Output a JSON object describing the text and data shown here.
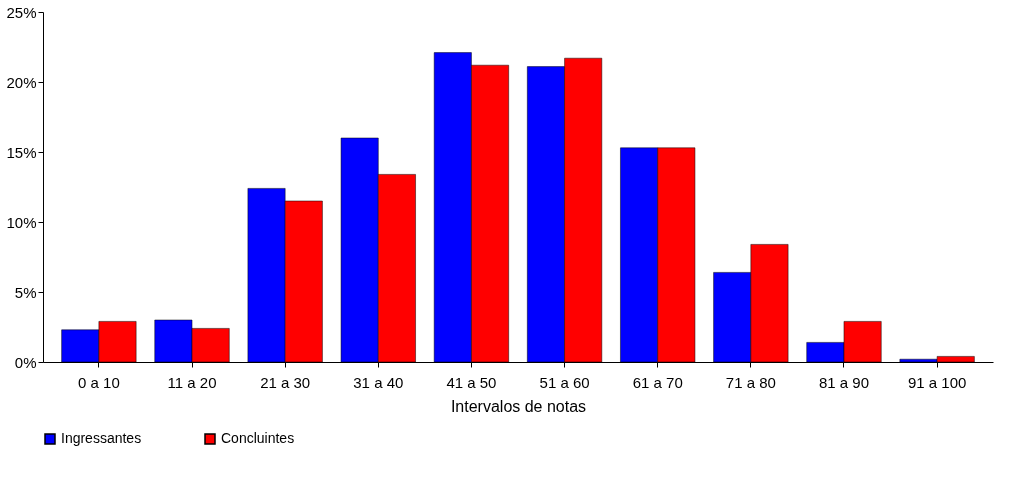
{
  "chart_data": {
    "type": "bar",
    "xlabel": "Intervalos de notas",
    "categories": [
      "0 a 10",
      "11 a 20",
      "21 a 30",
      "31 a 40",
      "41 a 50",
      "51 a 60",
      "61 a 70",
      "71 a 80",
      "81 a 90",
      "91 a 100"
    ],
    "series": [
      {
        "name": "Ingressantes",
        "color": "#0000ff",
        "values": [
          2.3,
          3.0,
          12.4,
          16.0,
          22.1,
          21.1,
          15.3,
          6.4,
          1.4,
          0.2
        ]
      },
      {
        "name": "Concluintes",
        "color": "#ff0000",
        "values": [
          2.9,
          2.4,
          11.5,
          13.4,
          21.2,
          21.7,
          15.3,
          8.4,
          2.9,
          0.4
        ]
      }
    ],
    "ylim": [
      0,
      25
    ],
    "yticks": [
      {
        "value": 0,
        "label": "0%"
      },
      {
        "value": 5,
        "label": "5%"
      },
      {
        "value": 10,
        "label": "10%"
      },
      {
        "value": 15,
        "label": "15%"
      },
      {
        "value": 20,
        "label": "20%"
      },
      {
        "value": 25,
        "label": "25%"
      }
    ],
    "grid": false,
    "legend": "bottom"
  }
}
